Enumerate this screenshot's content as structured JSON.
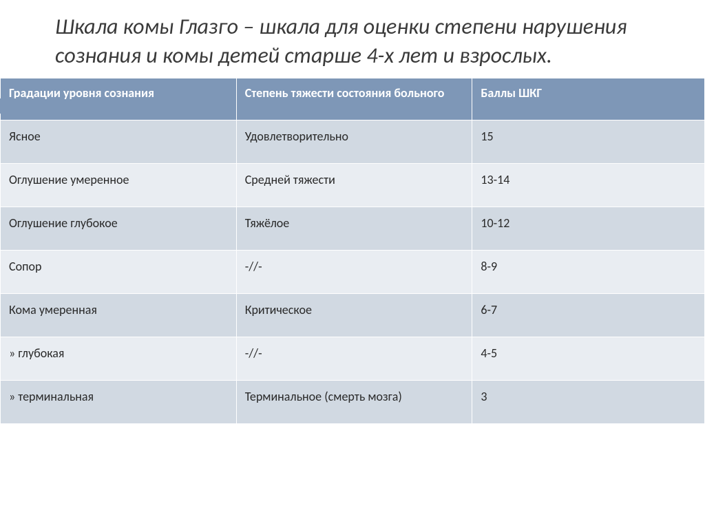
{
  "title": "Шкала комы Глазго – шкала для оценки степени нарушения сознания и комы детей старше 4-х лет и взрослых.",
  "title_color": "#3a3a3a",
  "title_fontsize": 32,
  "accent_color": "#7e97b7",
  "table": {
    "header_bg": "#7e97b7",
    "header_fg": "#ffffff",
    "band_a_bg": "#d1d9e2",
    "band_b_bg": "#e9edf2",
    "cell_fontsize": 18,
    "columns": [
      "Градации уровня сознания",
      "Степень тяжести состояния больного",
      "Баллы ШКГ"
    ],
    "rows": [
      {
        "c0": "Ясное",
        "c1": "Удовлетворительно",
        "c2": "15"
      },
      {
        "c0": "Оглушение умеренное",
        "c1": "Средней тяжести",
        "c2": "13-14"
      },
      {
        "c0": "Оглушение глубокое",
        "c1": "Тяжёлое",
        "c2": "10-12"
      },
      {
        "c0": "Сопор",
        "c1": "-//-",
        "c2": "8-9"
      },
      {
        "c0": "Кома умеренная",
        "c1": "Критическое",
        "c2": "6-7"
      },
      {
        "c0": "» глубокая",
        "c1": "-//-",
        "c2": "4-5"
      },
      {
        "c0": "» терминальная",
        "c1": "Терминальное (смерть мозга)",
        "c2": "3"
      }
    ]
  }
}
